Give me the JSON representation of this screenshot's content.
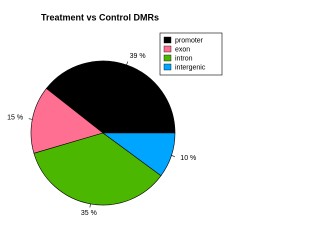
{
  "chart_data": {
    "type": "pie",
    "title": "Treatment vs Control DMRs",
    "categories": [
      "promoter",
      "exon",
      "intron",
      "intergenic"
    ],
    "values": [
      39,
      15,
      35,
      10
    ],
    "value_labels": [
      "39 %",
      "15 %",
      "35 %",
      "10 %"
    ],
    "colors": [
      "#000000",
      "#ff6f91",
      "#4cb700",
      "#00a5ff"
    ],
    "legend": "top-right"
  }
}
